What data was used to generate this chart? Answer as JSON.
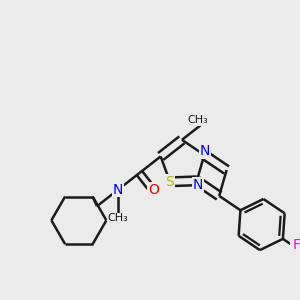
{
  "bg_color": "#ebebeb",
  "bond_color": "#1a1a1a",
  "bond_width": 1.8,
  "dbo": 0.015,
  "atom_colors": {
    "N": "#0000ee",
    "O": "#ee0000",
    "S": "#bbbb00",
    "F": "#ee00ee",
    "C": "#1a1a1a"
  },
  "font_size": 10
}
